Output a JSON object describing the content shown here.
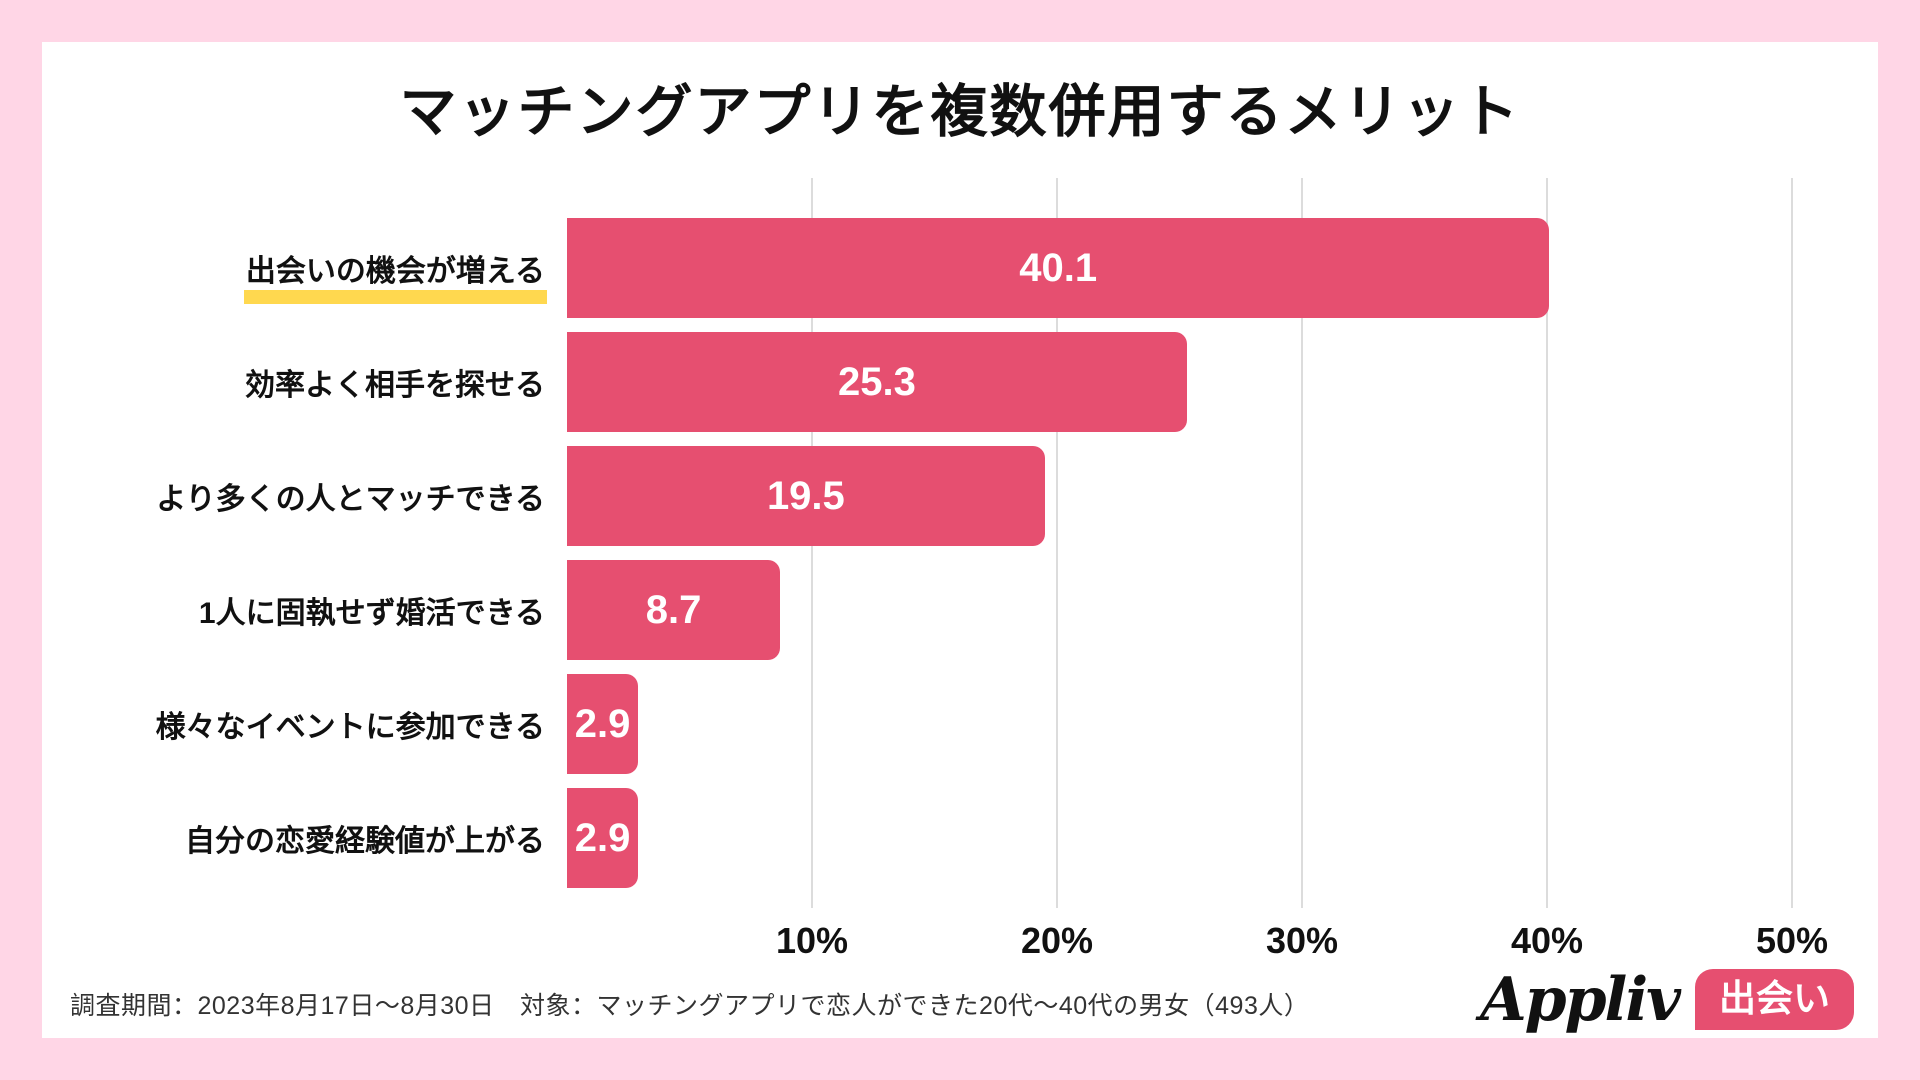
{
  "page": {
    "background_color": "#ffd6e6",
    "card_background": "#ffffff"
  },
  "title": "マッチングアプリを複数併用するメリット",
  "chart_data": {
    "type": "bar",
    "orientation": "horizontal",
    "title": "マッチングアプリを複数併用するメリット",
    "categories": [
      "出会いの機会が増える",
      "効率よく相手を探せる",
      "より多くの人とマッチできる",
      "1人に固執せず婚活できる",
      "様々なイベントに参加できる",
      "自分の恋愛経験値が上がる"
    ],
    "values": [
      40.1,
      25.3,
      19.5,
      8.7,
      2.9,
      2.9
    ],
    "value_unit": "%",
    "highlighted_category_index": 0,
    "highlight_underline_color": "#ffd84f",
    "bar_color": "#e64f70",
    "value_label_color": "#ffffff",
    "xlim": [
      0,
      50
    ],
    "x_ticks": [
      "10%",
      "20%",
      "30%",
      "40%",
      "50%"
    ],
    "x_tick_values": [
      10,
      20,
      30,
      40,
      50
    ],
    "grid": true,
    "gridline_color": "#dcdcdc"
  },
  "footer": {
    "note": "調査期間：2023年8月17日〜8月30日　対象：マッチングアプリで恋人ができた20代〜40代の男女（493人）"
  },
  "branding": {
    "logo_text": "Appliv",
    "badge_label": "出会い",
    "badge_color": "#e64f70"
  }
}
